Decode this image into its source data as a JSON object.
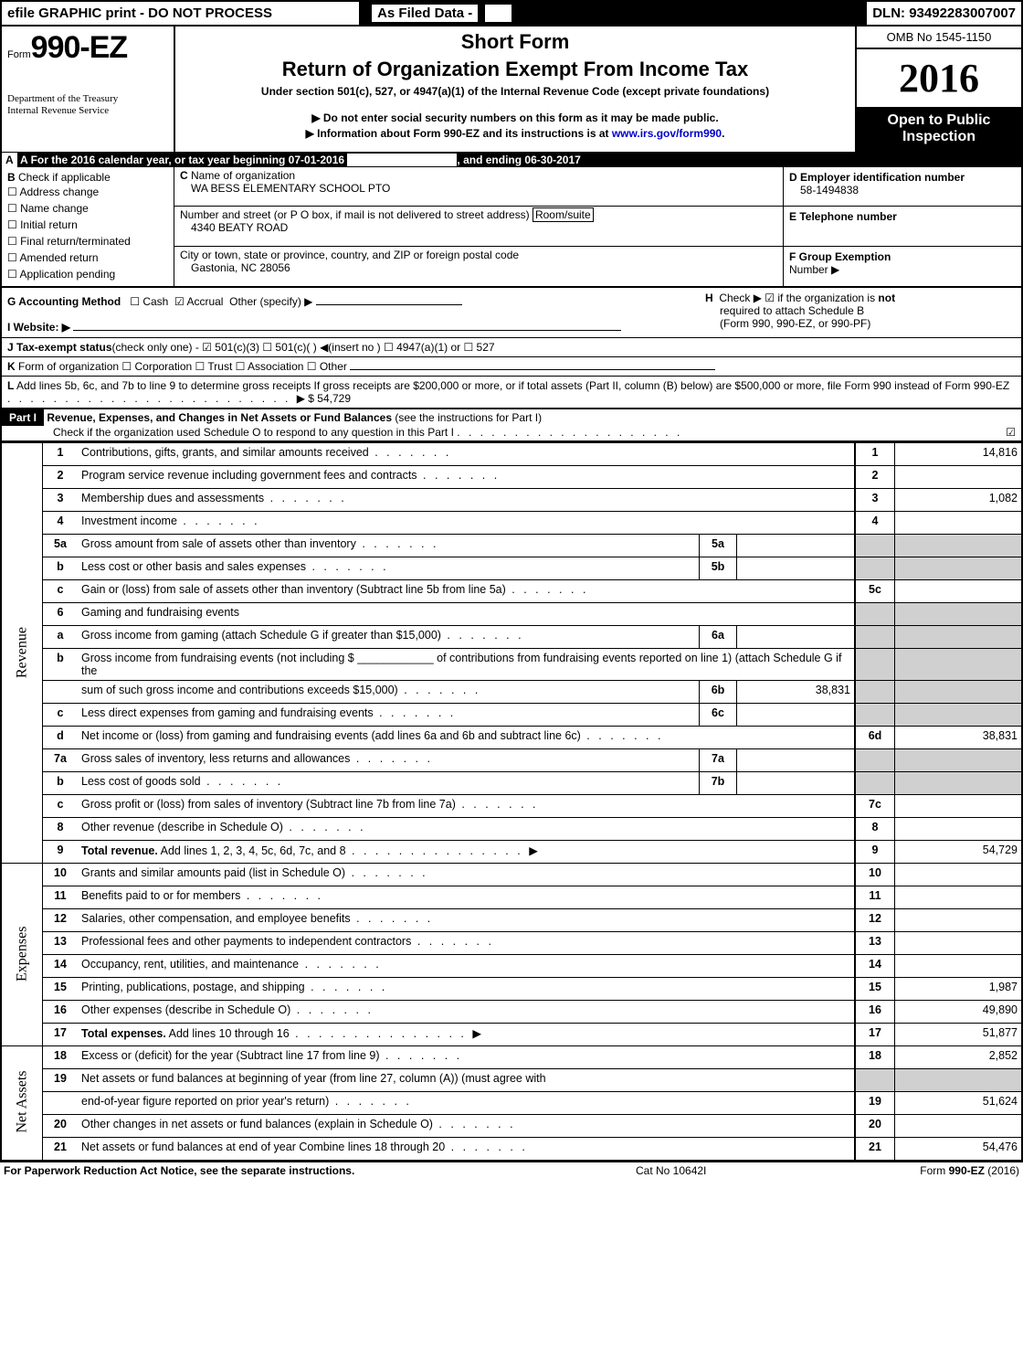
{
  "top": {
    "efile": "efile GRAPHIC print - DO NOT PROCESS",
    "asfiled": "As Filed Data -",
    "dln": "DLN: 93492283007007"
  },
  "head": {
    "form_word": "Form",
    "form_no": "990-EZ",
    "dept1": "Department of the Treasury",
    "dept2": "Internal Revenue Service",
    "title1": "Short Form",
    "title2": "Return of Organization Exempt From Income Tax",
    "sub": "Under section 501(c), 527, or 4947(a)(1) of the Internal Revenue Code (except private foundations)",
    "b1": "▶ Do not enter social security numbers on this form as it may be made public.",
    "b2a": "▶ Information about Form 990-EZ and its instructions is at ",
    "b2link": "www.irs.gov/form990",
    "omb": "OMB No 1545-1150",
    "year": "2016",
    "open1": "Open to Public",
    "open2": "Inspection"
  },
  "A": {
    "label": "A  For the 2016 calendar year, or tax year beginning 07-01-2016",
    "end": ", and ending 06-30-2017"
  },
  "B": {
    "label": "B",
    "txt": "Check if applicable",
    "c1": "Address change",
    "c2": "Name change",
    "c3": "Initial return",
    "c4": "Final return/terminated",
    "c5": "Amended return",
    "c6": "Application pending"
  },
  "C": {
    "label": "C",
    "txt": "Name of organization",
    "org": "WA BESS ELEMENTARY SCHOOL PTO",
    "addr_lbl": "Number and street (or P  O  box, if mail is not delivered to street address)",
    "room": "Room/suite",
    "addr": "4340 BEATY ROAD",
    "city_lbl": "City or town, state or province, country, and ZIP or foreign postal code",
    "city": "Gastonia, NC  28056"
  },
  "D": {
    "label": "D Employer identification number",
    "ein": "58-1494838"
  },
  "E": {
    "label": "E Telephone number"
  },
  "F": {
    "label": "F Group Exemption",
    "num": "Number   ▶"
  },
  "G": {
    "label": "G Accounting Method",
    "cash": "☐ Cash",
    "accr": "☑ Accrual",
    "oth": "Other (specify) ▶"
  },
  "H": {
    "label": "H",
    "txt1": "Check ▶  ☑  if the organization is ",
    "not": "not",
    "txt2": "required to attach Schedule B",
    "txt3": "(Form 990, 990-EZ, or 990-PF)"
  },
  "I": {
    "label": "I Website: ▶"
  },
  "J": {
    "label": "J Tax-exempt status",
    "txt": "(check only one) - ☑ 501(c)(3)  ☐ 501(c)(  ) ◀(insert no ) ☐ 4947(a)(1) or  ☐ 527"
  },
  "K": {
    "label": "K",
    "txt": "Form of organization   ☐ Corporation  ☐ Trust  ☐ Association  ☐ Other"
  },
  "L": {
    "label": "L",
    "txt": "Add lines 5b, 6c, and 7b to line 9 to determine gross receipts  If gross receipts are $200,000 or more, or if total assets (Part II, column (B) below) are $500,000 or more, file Form 990 instead of Form 990-EZ",
    "arrow": "▶ $",
    "amt": "54,729"
  },
  "part1": {
    "lbl": "Part I",
    "title": "Revenue, Expenses, and Changes in Net Assets or Fund Balances",
    "see": "(see the instructions for Part I)",
    "inst": "Check if the organization used Schedule O to respond to any question in this Part I",
    "chk": "☑"
  },
  "sidelabels": {
    "rev": "Revenue",
    "exp": "Expenses",
    "na": "Net Assets"
  },
  "lines": [
    {
      "n": "1",
      "d": "Contributions, gifts, grants, and similar amounts received",
      "on": "1",
      "ov": "14,816"
    },
    {
      "n": "2",
      "d": "Program service revenue including government fees and contracts",
      "on": "2",
      "ov": ""
    },
    {
      "n": "3",
      "d": "Membership dues and assessments",
      "on": "3",
      "ov": "1,082"
    },
    {
      "n": "4",
      "d": "Investment income",
      "on": "4",
      "ov": ""
    },
    {
      "n": "5a",
      "d": "Gross amount from sale of assets other than inventory",
      "in": "5a",
      "iv": "",
      "grey": true
    },
    {
      "n": "b",
      "d": "Less  cost or other basis and sales expenses",
      "in": "5b",
      "iv": "",
      "grey": true
    },
    {
      "n": "c",
      "d": "Gain or (loss) from sale of assets other than inventory (Subtract line 5b from line 5a)",
      "on": "5c",
      "ov": ""
    },
    {
      "n": "6",
      "d": "Gaming and fundraising events",
      "grey": true,
      "noin": true
    },
    {
      "n": "a",
      "d": "Gross income from gaming (attach Schedule G if greater than $15,000)",
      "in": "6a",
      "iv": "",
      "grey": true
    },
    {
      "n": "b",
      "d": "Gross income from fundraising events (not including $ ____________ of contributions from fundraising events reported on line 1) (attach Schedule G if the",
      "grey": true,
      "noin": true
    },
    {
      "n": "",
      "d": "sum of such gross income and contributions exceeds $15,000)",
      "in": "6b",
      "iv": "38,831",
      "grey": true
    },
    {
      "n": "c",
      "d": "Less  direct expenses from gaming and fundraising events",
      "in": "6c",
      "iv": "",
      "grey": true
    },
    {
      "n": "d",
      "d": "Net income or (loss) from gaming and fundraising events (add lines 6a and 6b and subtract line 6c)",
      "on": "6d",
      "ov": "38,831"
    },
    {
      "n": "7a",
      "d": "Gross sales of inventory, less returns and allowances",
      "in": "7a",
      "iv": "",
      "grey": true
    },
    {
      "n": "b",
      "d": "Less  cost of goods sold",
      "in": "7b",
      "iv": "",
      "grey": true
    },
    {
      "n": "c",
      "d": "Gross profit or (loss) from sales of inventory (Subtract line 7b from line 7a)",
      "on": "7c",
      "ov": ""
    },
    {
      "n": "8",
      "d": "Other revenue (describe in Schedule O)",
      "on": "8",
      "ov": ""
    },
    {
      "n": "9",
      "d": "Total revenue. Add lines 1, 2, 3, 4, 5c, 6d, 7c, and 8",
      "arrow": true,
      "on": "9",
      "ov": "54,729",
      "bold": true
    },
    {
      "n": "10",
      "d": "Grants and similar amounts paid (list in Schedule O)",
      "on": "10",
      "ov": ""
    },
    {
      "n": "11",
      "d": "Benefits paid to or for members",
      "on": "11",
      "ov": ""
    },
    {
      "n": "12",
      "d": "Salaries, other compensation, and employee benefits",
      "on": "12",
      "ov": ""
    },
    {
      "n": "13",
      "d": "Professional fees and other payments to independent contractors",
      "on": "13",
      "ov": ""
    },
    {
      "n": "14",
      "d": "Occupancy, rent, utilities, and maintenance",
      "on": "14",
      "ov": ""
    },
    {
      "n": "15",
      "d": "Printing, publications, postage, and shipping",
      "on": "15",
      "ov": "1,987"
    },
    {
      "n": "16",
      "d": "Other expenses (describe in Schedule O)",
      "on": "16",
      "ov": "49,890"
    },
    {
      "n": "17",
      "d": "Total expenses. Add lines 10 through 16",
      "arrow": true,
      "on": "17",
      "ov": "51,877",
      "bold": true
    },
    {
      "n": "18",
      "d": "Excess or (deficit) for the year (Subtract line 17 from line 9)",
      "on": "18",
      "ov": "2,852"
    },
    {
      "n": "19",
      "d": "Net assets or fund balances at beginning of year (from line 27, column (A)) (must agree with",
      "greyhalf": true
    },
    {
      "n": "",
      "d": "end-of-year figure reported on prior year's return)",
      "on": "19",
      "ov": "51,624"
    },
    {
      "n": "20",
      "d": "Other changes in net assets or fund balances (explain in Schedule O)",
      "on": "20",
      "ov": ""
    },
    {
      "n": "21",
      "d": "Net assets or fund balances at end of year  Combine lines 18 through 20",
      "on": "21",
      "ov": "54,476"
    }
  ],
  "footer": {
    "l": "For Paperwork Reduction Act Notice, see the separate instructions.",
    "m": "Cat No  10642I",
    "r": "Form 990-EZ (2016)"
  }
}
